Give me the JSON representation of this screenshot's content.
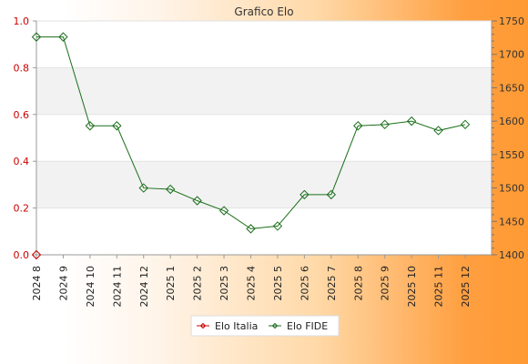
{
  "chart_data": {
    "type": "line",
    "title": "Grafico Elo",
    "categories": [
      "2024 8",
      "2024 9",
      "2024 10",
      "2024 11",
      "2024 12",
      "2025 1",
      "2025 2",
      "2025 3",
      "2025 4",
      "2025 5",
      "2025 6",
      "2025 7",
      "2025 8",
      "2025 9",
      "2025 10",
      "2025 11",
      "2025 12"
    ],
    "left_axis": {
      "ylim": [
        0.0,
        1.0
      ],
      "ticks": [
        "0.0",
        "0.2",
        "0.4",
        "0.6",
        "0.8",
        "1.0"
      ],
      "color": "#cc0000"
    },
    "right_axis": {
      "ylim": [
        1400,
        1750
      ],
      "ticks": [
        "1400",
        "1450",
        "1500",
        "1550",
        "1600",
        "1650",
        "1700",
        "1750"
      ]
    },
    "series": [
      {
        "name": "Elo Italia",
        "axis": "left",
        "color": "#cc0000",
        "values": [
          0,
          null,
          null,
          null,
          null,
          null,
          null,
          null,
          null,
          null,
          null,
          null,
          null,
          null,
          null,
          null,
          null
        ]
      },
      {
        "name": "Elo FIDE",
        "axis": "right",
        "color": "#1a6e1a",
        "values": [
          1726,
          1726,
          1593,
          1593,
          1500,
          1498,
          1481,
          1466,
          1439,
          1443,
          1490,
          1490,
          1593,
          1595,
          1600,
          1586,
          1595
        ]
      }
    ],
    "grid": true,
    "legend_position": "bottom-center"
  }
}
